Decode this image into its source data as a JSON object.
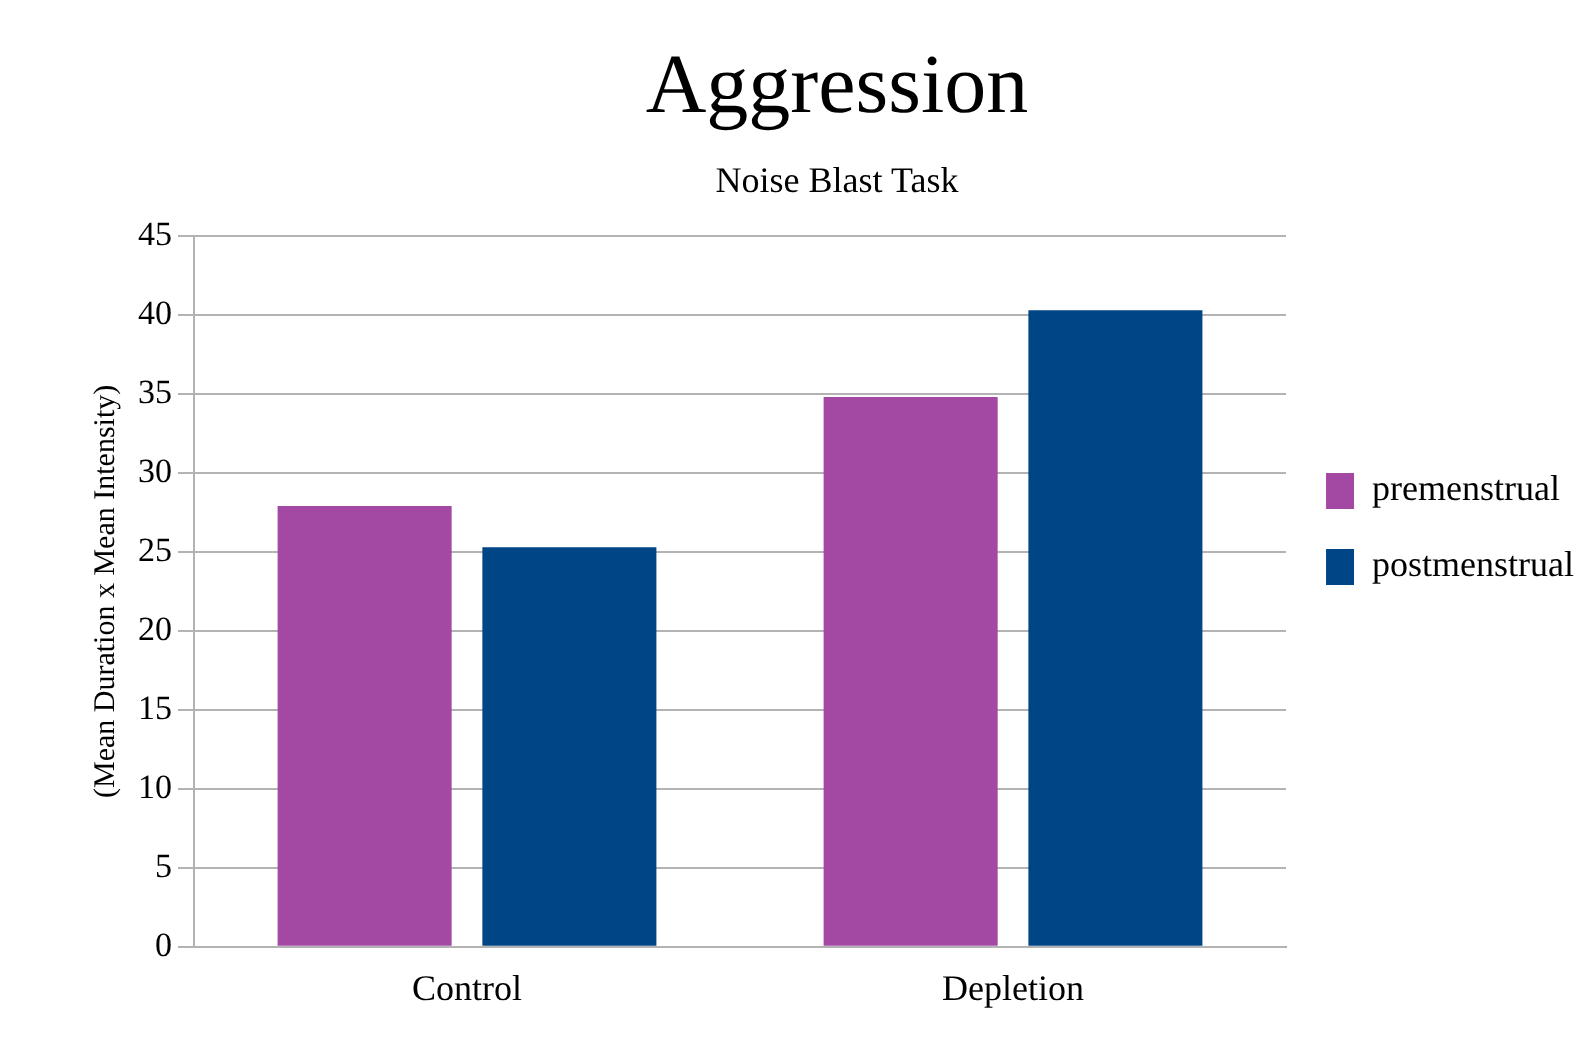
{
  "chart_data": {
    "type": "bar",
    "title": "Aggression",
    "subtitle": "Noise Blast Task",
    "ylabel": "(Mean Duration x Mean Intensity)",
    "categories": [
      "Control",
      "Depletion"
    ],
    "series": [
      {
        "name": "premenstrual",
        "color": "#a349a4",
        "values": [
          27.9,
          34.8
        ]
      },
      {
        "name": "postmenstrual",
        "color": "#004586",
        "values": [
          25.3,
          40.3
        ]
      }
    ],
    "ylim": [
      0,
      45
    ],
    "yticks": [
      0,
      5,
      10,
      15,
      20,
      25,
      30,
      35,
      40,
      45
    ],
    "grid": "y",
    "legend": "right"
  }
}
